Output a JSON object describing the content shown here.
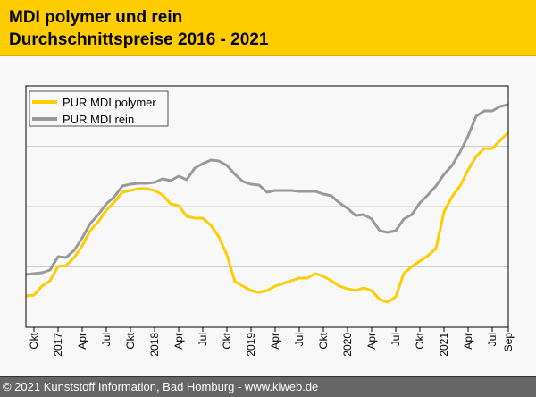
{
  "header": {
    "title_line1": "MDI polymer und rein",
    "title_line2": "Durchschnittspreise 2016 - 2021"
  },
  "footer": {
    "copyright": "© 2021 Kunststoff Information, Bad Homburg - www.kiweb.de"
  },
  "chart_data": {
    "type": "line",
    "title": "MDI polymer und rein Durchschnittspreise 2016 - 2021",
    "xlabel": "",
    "ylabel": "",
    "x_start": "2016-09",
    "x_end": "2021-09",
    "x_unit": "month",
    "ylim": [
      0,
      270
    ],
    "y_gridlines": [
      67.5,
      135,
      202.5
    ],
    "y_units": "relative (axis unlabeled)",
    "legend_position": "top-left",
    "x_ticks": [
      {
        "index": 1,
        "label": "Okt"
      },
      {
        "index": 4,
        "label": "2017"
      },
      {
        "index": 7,
        "label": "Apr"
      },
      {
        "index": 10,
        "label": "Jul"
      },
      {
        "index": 13,
        "label": "Okt"
      },
      {
        "index": 16,
        "label": "2018"
      },
      {
        "index": 19,
        "label": "Apr"
      },
      {
        "index": 22,
        "label": "Jul"
      },
      {
        "index": 25,
        "label": "Okt"
      },
      {
        "index": 28,
        "label": "2019"
      },
      {
        "index": 31,
        "label": "Apr"
      },
      {
        "index": 34,
        "label": "Jul"
      },
      {
        "index": 37,
        "label": "Okt"
      },
      {
        "index": 40,
        "label": "2020"
      },
      {
        "index": 43,
        "label": "Apr"
      },
      {
        "index": 46,
        "label": "Jul"
      },
      {
        "index": 49,
        "label": "Okt"
      },
      {
        "index": 52,
        "label": "2021"
      },
      {
        "index": 55,
        "label": "Apr"
      },
      {
        "index": 58,
        "label": "Jul"
      },
      {
        "index": 60,
        "label": "Sep"
      }
    ],
    "series": [
      {
        "name": "PUR MDI polymer",
        "color": "#ffcc00",
        "values": [
          35,
          36,
          46,
          52,
          68,
          69,
          78,
          91,
          108,
          118,
          131,
          140,
          151,
          153,
          155,
          155,
          153,
          148,
          138,
          136,
          124,
          122,
          122,
          114,
          101,
          81,
          51,
          46,
          41,
          39,
          41,
          46,
          49,
          52,
          55,
          55,
          60,
          57,
          52,
          46,
          43,
          41,
          44,
          41,
          31,
          28,
          34,
          60,
          68,
          74,
          80,
          88,
          129,
          146,
          158,
          176,
          191,
          200,
          200,
          209,
          218
        ]
      },
      {
        "name": "PUR MDI rein",
        "color": "#999999",
        "values": [
          59,
          60,
          61,
          64,
          79,
          78,
          86,
          100,
          116,
          126,
          138,
          146,
          158,
          160,
          161,
          161,
          162,
          166,
          164,
          169,
          165,
          178,
          183,
          187,
          186,
          181,
          171,
          163,
          160,
          159,
          151,
          153,
          153,
          153,
          152,
          152,
          152,
          149,
          147,
          139,
          133,
          125,
          126,
          121,
          108,
          106,
          108,
          121,
          126,
          139,
          148,
          158,
          171,
          181,
          196,
          214,
          236,
          242,
          242,
          247,
          249
        ]
      }
    ]
  }
}
